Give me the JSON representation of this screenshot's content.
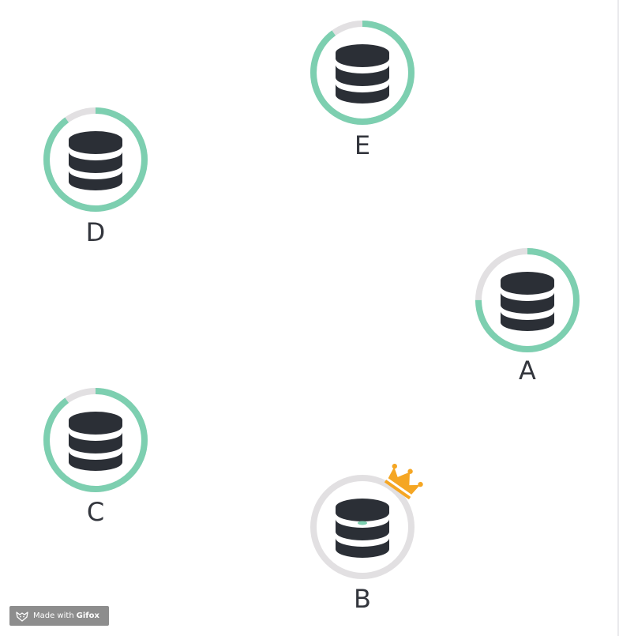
{
  "colors": {
    "progress": "#7dcfb0",
    "track": "#e2e0e2",
    "db_icon": "#2b2f36",
    "crown": "#f5a623",
    "label": "#33363d"
  },
  "nodes": [
    {
      "id": "A",
      "label": "A",
      "progress": 0.75,
      "leader": false,
      "icon": "database-icon"
    },
    {
      "id": "B",
      "label": "B",
      "progress": 0.0,
      "leader": true,
      "icon": "database-icon"
    },
    {
      "id": "C",
      "label": "C",
      "progress": 0.9,
      "leader": false,
      "icon": "database-icon"
    },
    {
      "id": "D",
      "label": "D",
      "progress": 0.9,
      "leader": false,
      "icon": "database-icon"
    },
    {
      "id": "E",
      "label": "E",
      "progress": 0.9,
      "leader": false,
      "icon": "database-icon"
    }
  ],
  "badge": {
    "prefix": "Made with",
    "brand": "Gifox",
    "icon": "fox-icon"
  }
}
